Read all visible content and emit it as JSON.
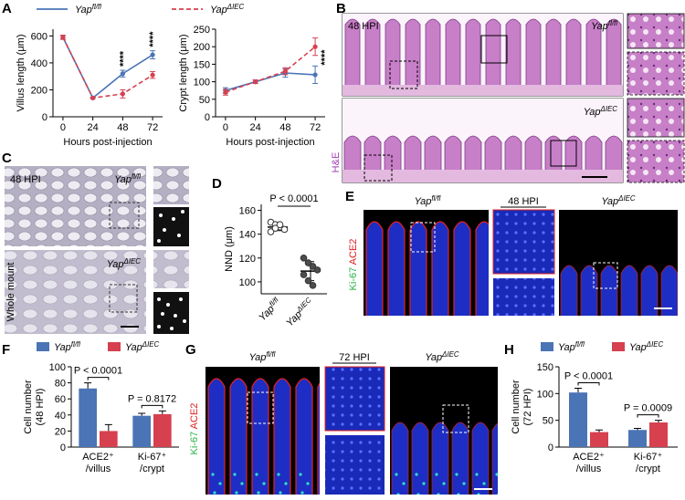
{
  "chart_data": [
    {
      "type": "line",
      "ylabel": "Villus length (μm)",
      "xlabel": "Hours post-injection",
      "x": [
        0,
        24,
        48,
        72
      ],
      "xlim": [
        -8,
        80
      ],
      "xticks": [
        0,
        24,
        48,
        72
      ],
      "ylim": [
        0,
        650
      ],
      "yticks": [
        0,
        200,
        400,
        600
      ],
      "series": [
        {
          "name": "Yapfl/fl",
          "color": "#4a74b5",
          "line_style": "solid",
          "values": [
            590,
            140,
            320,
            460
          ],
          "errors": [
            15,
            5,
            25,
            30
          ]
        },
        {
          "name": "YapΔIEC",
          "color": "#d6404f",
          "line_style": "dashed",
          "values": [
            590,
            140,
            170,
            310
          ],
          "errors": [
            15,
            5,
            30,
            25
          ]
        }
      ],
      "annotations": [
        "****",
        "****"
      ],
      "annotation_x": [
        48,
        72
      ]
    },
    {
      "type": "line",
      "ylabel": "Crypt length (μm)",
      "xlabel": "Hours post-injection",
      "x": [
        0,
        24,
        48,
        72
      ],
      "xlim": [
        -8,
        80
      ],
      "xticks": [
        0,
        24,
        48,
        72
      ],
      "ylim": [
        0,
        250
      ],
      "yticks": [
        0,
        50,
        100,
        150,
        200,
        250
      ],
      "series": [
        {
          "color": "#4a74b5",
          "line_style": "solid",
          "values": [
            75,
            100,
            125,
            120
          ],
          "errors": [
            8,
            5,
            12,
            25
          ]
        },
        {
          "color": "#d6404f",
          "line_style": "dashed",
          "values": [
            70,
            100,
            130,
            200
          ],
          "errors": [
            8,
            5,
            10,
            25
          ]
        }
      ],
      "annotations": [
        "****"
      ],
      "annotation_x": [
        72
      ]
    },
    {
      "type": "strip",
      "ylabel": "NND (μm)",
      "categories": [
        "Yapfl/fl",
        "YapΔIEC"
      ],
      "colors": [
        "#ffffff",
        "#4d4d4d"
      ],
      "values": [
        [
          150,
          148,
          146,
          144,
          142,
          145,
          148
        ],
        [
          120,
          116,
          113,
          110,
          106,
          101,
          97
        ]
      ],
      "means": [
        146,
        109
      ],
      "errors": [
        3,
        8
      ],
      "ylim": [
        90,
        165
      ],
      "yticks": [
        100,
        120,
        140,
        160
      ],
      "annotation": "P < 0.0001"
    },
    {
      "type": "bar",
      "ylabel": [
        "Cell number",
        "(48 HPI)"
      ],
      "categories": [
        [
          "ACE2⁺",
          "/villus"
        ],
        [
          "Ki-67⁺",
          "/crypt"
        ]
      ],
      "series": [
        {
          "name": "Yapfl/fl",
          "color": "#4a74b5",
          "values": [
            73,
            39
          ],
          "errors": [
            7,
            3
          ]
        },
        {
          "name": "YapΔIEC",
          "color": "#d6404f",
          "values": [
            20,
            41
          ],
          "errors": [
            8,
            4
          ]
        }
      ],
      "ylim": [
        0,
        100
      ],
      "yticks": [
        0,
        20,
        40,
        60,
        80,
        100
      ],
      "annotations": [
        "P < 0.0001",
        "P = 0.8172"
      ]
    },
    {
      "type": "bar",
      "ylabel": [
        "Cell number",
        "(72 HPI)"
      ],
      "categories": [
        [
          "ACE2⁺",
          "/villus"
        ],
        [
          "Ki-67⁺",
          "/crypt"
        ]
      ],
      "series": [
        {
          "name": "Yapfl/fl",
          "color": "#4a74b5",
          "values": [
            102,
            32
          ],
          "errors": [
            8,
            3
          ]
        },
        {
          "name": "YapΔIEC",
          "color": "#d6404f",
          "values": [
            28,
            46
          ],
          "errors": [
            4,
            4
          ]
        }
      ],
      "ylim": [
        0,
        150
      ],
      "yticks": [
        0,
        50,
        100,
        150
      ],
      "annotations": [
        "P < 0.0001",
        "P = 0.0009"
      ]
    }
  ],
  "figure": {
    "letters": [
      "A",
      "B",
      "C",
      "D",
      "E",
      "F",
      "G",
      "H"
    ],
    "b_labels": [
      "48 HPI",
      "Yapfl/fl",
      "YapΔIEC",
      "H&E"
    ],
    "c_labels": [
      "48 HPI",
      "Yapfl/fl",
      "YapΔIEC",
      "Whole mount"
    ],
    "e_labels": [
      "Yapfl/fl",
      "48 HPI",
      "YapΔIEC"
    ],
    "e_stain": [
      "Ki-67",
      "ACE2"
    ],
    "g_labels": [
      "Yapfl/fl",
      "72 HPI",
      "YapΔIEC"
    ],
    "g_stain": [
      "Ki-67",
      "ACE2"
    ]
  }
}
